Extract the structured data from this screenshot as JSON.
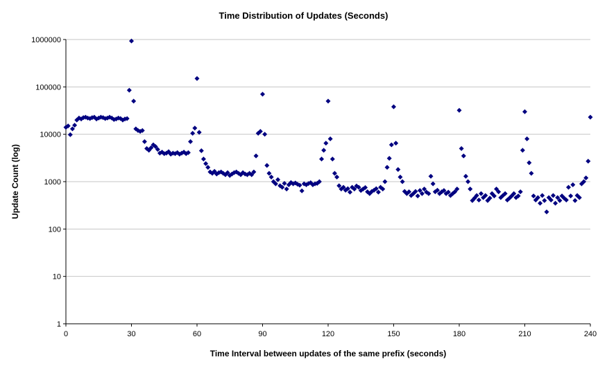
{
  "chart_data": {
    "type": "scatter",
    "title": "Time Distribution of Updates (Seconds)",
    "xlabel": "Time Interval between updates of the same prefix (seconds)",
    "ylabel": "Update Count (log)",
    "xlim": [
      0,
      240
    ],
    "ylim": [
      1,
      1000000
    ],
    "y_scale": "log10",
    "grid": "horizontal",
    "legend": "none",
    "marker": "diamond",
    "x_ticks": [
      {
        "value": 0,
        "label": "0"
      },
      {
        "value": 30,
        "label": "30"
      },
      {
        "value": 60,
        "label": "60"
      },
      {
        "value": 90,
        "label": "90"
      },
      {
        "value": 120,
        "label": "120"
      },
      {
        "value": 150,
        "label": "150"
      },
      {
        "value": 180,
        "label": "180"
      },
      {
        "value": 210,
        "label": "210"
      },
      {
        "value": 240,
        "label": "240"
      }
    ],
    "y_ticks": [
      {
        "value": 1,
        "label": "1"
      },
      {
        "value": 10,
        "label": "10"
      },
      {
        "value": 100,
        "label": "100"
      },
      {
        "value": 1000,
        "label": "1000"
      },
      {
        "value": 10000,
        "label": "10000"
      },
      {
        "value": 100000,
        "label": "100000"
      },
      {
        "value": 1000000,
        "label": "1000000"
      }
    ],
    "colors": {
      "marker": "#000080",
      "grid": "#c6c6c6",
      "axis": "#000000",
      "background": "#ffffff"
    },
    "x": [
      0,
      1,
      2,
      3,
      4,
      5,
      6,
      7,
      8,
      9,
      10,
      11,
      12,
      13,
      14,
      15,
      16,
      17,
      18,
      19,
      20,
      21,
      22,
      23,
      24,
      25,
      26,
      27,
      28,
      29,
      30,
      31,
      32,
      33,
      34,
      35,
      36,
      37,
      38,
      39,
      40,
      41,
      42,
      43,
      44,
      45,
      46,
      47,
      48,
      49,
      50,
      51,
      52,
      53,
      54,
      55,
      56,
      57,
      58,
      59,
      60,
      61,
      62,
      63,
      64,
      65,
      66,
      67,
      68,
      69,
      70,
      71,
      72,
      73,
      74,
      75,
      76,
      77,
      78,
      79,
      80,
      81,
      82,
      83,
      84,
      85,
      86,
      87,
      88,
      89,
      90,
      91,
      92,
      93,
      94,
      95,
      96,
      97,
      98,
      99,
      100,
      101,
      102,
      103,
      104,
      105,
      106,
      107,
      108,
      109,
      110,
      111,
      112,
      113,
      114,
      115,
      116,
      117,
      118,
      119,
      120,
      121,
      122,
      123,
      124,
      125,
      126,
      127,
      128,
      129,
      130,
      131,
      132,
      133,
      134,
      135,
      136,
      137,
      138,
      139,
      140,
      141,
      142,
      143,
      144,
      145,
      146,
      147,
      148,
      149,
      150,
      151,
      152,
      153,
      154,
      155,
      156,
      157,
      158,
      159,
      160,
      161,
      162,
      163,
      164,
      165,
      166,
      167,
      168,
      169,
      170,
      171,
      172,
      173,
      174,
      175,
      176,
      177,
      178,
      179,
      180,
      181,
      182,
      183,
      184,
      185,
      186,
      187,
      188,
      189,
      190,
      191,
      192,
      193,
      194,
      195,
      196,
      197,
      198,
      199,
      200,
      201,
      202,
      203,
      204,
      205,
      206,
      207,
      208,
      209,
      210,
      211,
      212,
      213,
      214,
      215,
      216,
      217,
      218,
      219,
      220,
      221,
      222,
      223,
      224,
      225,
      226,
      227,
      228,
      229,
      230,
      231,
      232,
      233,
      234,
      235,
      236,
      237,
      238,
      239,
      240
    ],
    "values": [
      14000,
      15000,
      9800,
      13000,
      15500,
      20000,
      22000,
      21000,
      22500,
      23000,
      22000,
      21500,
      22500,
      23000,
      21000,
      22000,
      23000,
      22500,
      21500,
      22000,
      23000,
      22000,
      20500,
      21000,
      22000,
      21500,
      20000,
      21000,
      21500,
      85000,
      930000,
      50000,
      13000,
      12000,
      11500,
      12000,
      7000,
      5000,
      4600,
      5200,
      6000,
      5500,
      4800,
      4000,
      4200,
      3900,
      4000,
      4300,
      3800,
      4000,
      3900,
      4100,
      3800,
      4000,
      4200,
      3900,
      4100,
      7000,
      10500,
      13500,
      150000,
      11000,
      4500,
      3000,
      2400,
      2000,
      1600,
      1500,
      1650,
      1450,
      1550,
      1600,
      1500,
      1400,
      1550,
      1350,
      1450,
      1550,
      1600,
      1500,
      1400,
      1550,
      1450,
      1400,
      1500,
      1400,
      1600,
      3500,
      10500,
      11500,
      70000,
      10000,
      2200,
      1500,
      1250,
      1000,
      900,
      1100,
      820,
      760,
      920,
      700,
      860,
      960,
      900,
      940,
      880,
      840,
      640,
      900,
      860,
      910,
      950,
      860,
      900,
      920,
      1000,
      3000,
      4600,
      6500,
      50000,
      8000,
      3000,
      1500,
      1250,
      820,
      700,
      760,
      660,
      710,
      600,
      760,
      700,
      810,
      760,
      650,
      700,
      750,
      610,
      560,
      620,
      660,
      710,
      600,
      760,
      700,
      1000,
      2000,
      3100,
      6000,
      38000,
      6500,
      1800,
      1250,
      1000,
      620,
      560,
      610,
      510,
      560,
      620,
      500,
      650,
      560,
      700,
      600,
      560,
      1300,
      900,
      610,
      660,
      560,
      610,
      650,
      560,
      600,
      510,
      560,
      610,
      700,
      32000,
      5000,
      3500,
      1300,
      1000,
      700,
      400,
      450,
      510,
      410,
      560,
      460,
      510,
      400,
      450,
      560,
      500,
      700,
      610,
      460,
      510,
      560,
      410,
      450,
      500,
      560,
      460,
      500,
      610,
      4600,
      30000,
      8000,
      2500,
      1500,
      500,
      410,
      460,
      350,
      510,
      400,
      230,
      460,
      410,
      510,
      350,
      460,
      400,
      500,
      450,
      410,
      760,
      500,
      860,
      400,
      510,
      460,
      900,
      1000,
      1200,
      2700,
      23000
    ]
  }
}
